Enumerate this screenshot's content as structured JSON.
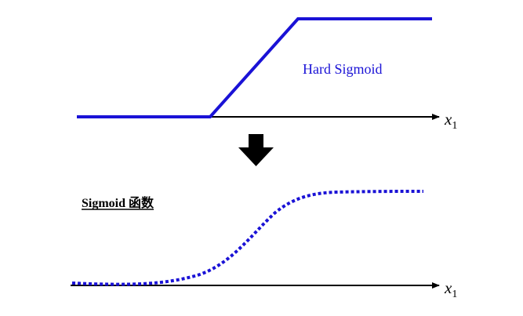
{
  "top_panel": {
    "curve_label": "Hard Sigmoid",
    "axis_label_var": "x",
    "axis_label_sub": "1"
  },
  "bottom_panel": {
    "title": "Sigmoid 函数",
    "axis_label_var": "x",
    "axis_label_sub": "1"
  },
  "colors": {
    "curve": "#1a12d6",
    "axis": "#000000",
    "arrow": "#000000",
    "label": "#1a12d6"
  }
}
